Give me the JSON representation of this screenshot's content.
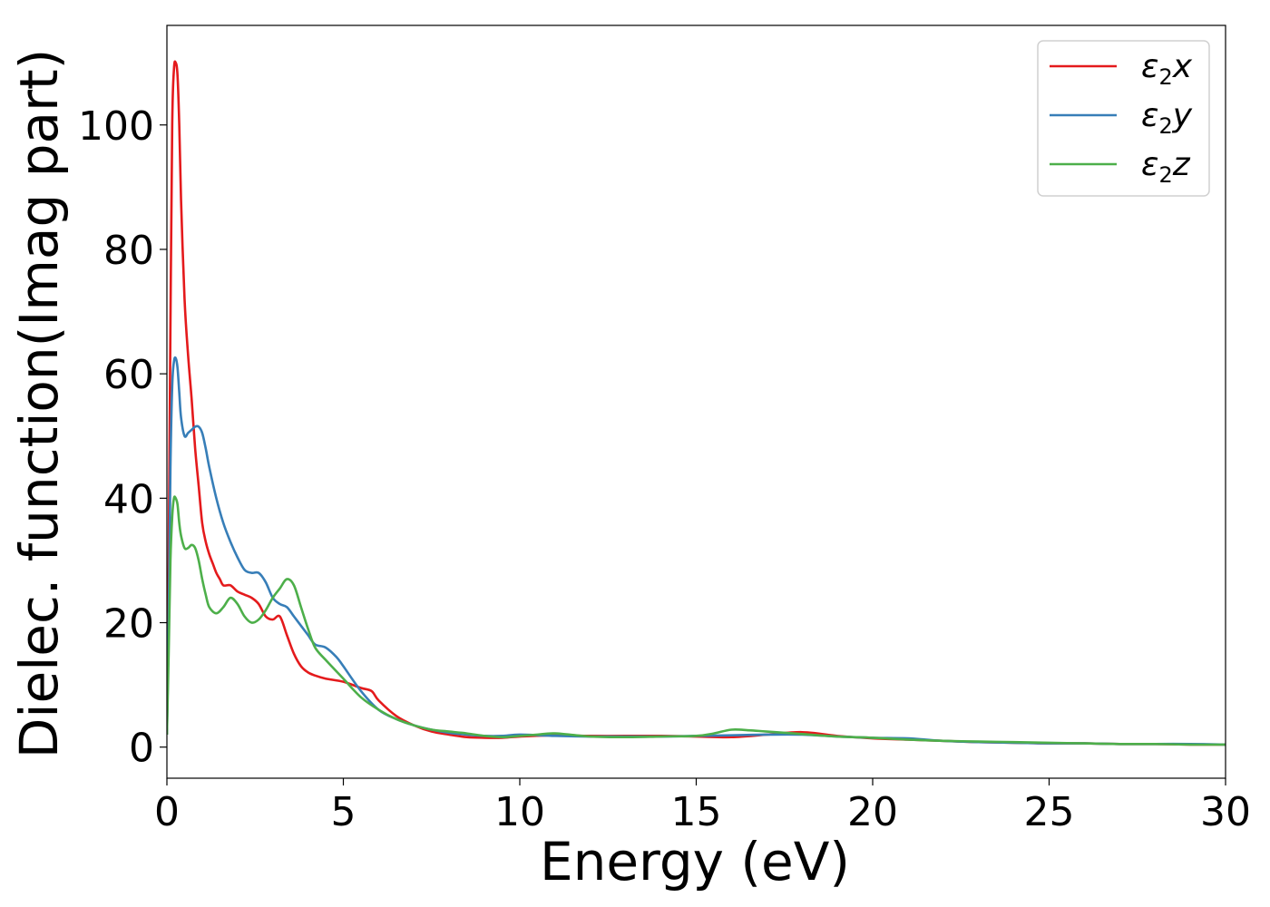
{
  "chart_data": {
    "type": "line",
    "xlabel": "Energy (eV)",
    "ylabel": "Dielec. function(Imag part)",
    "xlim": [
      0,
      30
    ],
    "ylim": [
      -5,
      116
    ],
    "xticks": [
      0,
      5,
      10,
      15,
      20,
      25,
      30
    ],
    "yticks": [
      0,
      20,
      40,
      60,
      80,
      100
    ],
    "grid": false,
    "legend_position": "top-right",
    "series": [
      {
        "name": "ε2x",
        "legend_main": "ε",
        "legend_sub": "2",
        "legend_suffix": "x",
        "color": "#e41a1c",
        "x": [
          0,
          0.05,
          0.1,
          0.15,
          0.2,
          0.25,
          0.3,
          0.35,
          0.4,
          0.5,
          0.6,
          0.7,
          0.8,
          0.9,
          1.0,
          1.1,
          1.2,
          1.3,
          1.4,
          1.5,
          1.6,
          1.8,
          2.0,
          2.2,
          2.4,
          2.6,
          2.8,
          3.0,
          3.2,
          3.4,
          3.6,
          3.8,
          4.0,
          4.2,
          4.5,
          5.0,
          5.5,
          5.8,
          6.0,
          6.5,
          7.0,
          7.5,
          8.0,
          8.5,
          9.0,
          9.5,
          10.0,
          11.0,
          12.0,
          13.0,
          14.0,
          15.0,
          16.0,
          17.0,
          18.0,
          19.0,
          20.0,
          21.0,
          22.0,
          23.0,
          24.0,
          25.0,
          26.0,
          27.0,
          28.0,
          29.0,
          30.0
        ],
        "values": [
          2,
          30,
          68,
          100,
          109,
          110,
          108,
          100,
          88,
          72,
          63,
          56,
          48,
          42,
          36,
          33,
          31,
          29.5,
          28,
          27,
          26,
          26,
          25,
          24.5,
          24,
          23,
          21,
          20.5,
          21,
          18,
          15,
          13,
          12,
          11.5,
          11,
          10.5,
          9.5,
          9,
          7.5,
          5,
          3.5,
          2.5,
          2.0,
          1.6,
          1.5,
          1.5,
          1.7,
          1.9,
          1.8,
          1.8,
          1.8,
          1.7,
          1.6,
          2.0,
          2.4,
          1.8,
          1.4,
          1.2,
          1.0,
          0.8,
          0.7,
          0.6,
          0.6,
          0.5,
          0.5,
          0.4,
          0.4
        ]
      },
      {
        "name": "ε2y",
        "legend_main": "ε",
        "legend_sub": "2",
        "legend_suffix": "y",
        "color": "#377eb8",
        "x": [
          0,
          0.05,
          0.1,
          0.15,
          0.2,
          0.25,
          0.3,
          0.35,
          0.4,
          0.5,
          0.6,
          0.7,
          0.8,
          0.9,
          1.0,
          1.1,
          1.2,
          1.4,
          1.6,
          1.8,
          2.0,
          2.2,
          2.4,
          2.6,
          2.8,
          3.0,
          3.2,
          3.4,
          3.6,
          3.8,
          4.0,
          4.2,
          4.5,
          4.8,
          5.0,
          5.5,
          6.0,
          6.5,
          7.0,
          7.5,
          8.0,
          8.5,
          9.0,
          9.5,
          10.0,
          11.0,
          12.0,
          13.0,
          14.0,
          15.0,
          16.0,
          17.0,
          18.0,
          19.0,
          20.0,
          21.0,
          22.0,
          23.0,
          24.0,
          25.0,
          26.0,
          27.0,
          28.0,
          29.0,
          30.0
        ],
        "values": [
          2,
          20,
          45,
          58,
          62,
          62.5,
          61,
          57,
          53,
          50,
          50.5,
          51,
          51.5,
          51.5,
          50.5,
          48,
          45,
          40,
          36,
          33,
          30.5,
          28.5,
          28,
          28,
          26.5,
          24,
          23,
          22.5,
          21,
          19.5,
          18,
          16.5,
          16,
          14.5,
          13,
          9,
          6,
          4.5,
          3.5,
          2.8,
          2.3,
          2.0,
          1.8,
          1.8,
          2.0,
          1.8,
          1.7,
          1.7,
          1.7,
          1.8,
          1.9,
          2.0,
          2.0,
          1.7,
          1.5,
          1.4,
          1.0,
          0.8,
          0.7,
          0.6,
          0.6,
          0.5,
          0.5,
          0.5,
          0.4
        ]
      },
      {
        "name": "ε2z",
        "legend_main": "ε",
        "legend_sub": "2",
        "legend_suffix": "z",
        "color": "#4daf4a",
        "x": [
          0,
          0.05,
          0.1,
          0.15,
          0.2,
          0.25,
          0.3,
          0.35,
          0.4,
          0.5,
          0.6,
          0.7,
          0.8,
          0.9,
          1.0,
          1.1,
          1.2,
          1.4,
          1.6,
          1.8,
          2.0,
          2.2,
          2.4,
          2.6,
          2.8,
          3.0,
          3.2,
          3.4,
          3.6,
          3.8,
          4.0,
          4.2,
          4.5,
          5.0,
          5.5,
          6.0,
          6.5,
          7.0,
          7.5,
          8.0,
          8.5,
          9.0,
          9.5,
          10.0,
          10.5,
          11.0,
          12.0,
          13.0,
          14.0,
          15.0,
          15.5,
          16.0,
          16.5,
          17.0,
          18.0,
          19.0,
          20.0,
          21.0,
          22.0,
          23.0,
          24.0,
          25.0,
          26.0,
          27.0,
          28.0,
          29.0,
          30.0
        ],
        "values": [
          2,
          15,
          30,
          37,
          40,
          40,
          39,
          36,
          34,
          32,
          32,
          32.5,
          32,
          30,
          27,
          24.5,
          22.5,
          21.5,
          22.5,
          24,
          23,
          21,
          20,
          20.5,
          22,
          24,
          25.5,
          27,
          26,
          22.5,
          19,
          16,
          14,
          11,
          8,
          6,
          4.5,
          3.5,
          2.8,
          2.5,
          2.2,
          1.8,
          1.6,
          1.8,
          2.0,
          2.2,
          1.7,
          1.6,
          1.7,
          1.8,
          2.2,
          2.8,
          2.7,
          2.5,
          2.1,
          1.7,
          1.5,
          1.2,
          1.0,
          0.9,
          0.8,
          0.7,
          0.6,
          0.5,
          0.5,
          0.4,
          0.4
        ]
      }
    ]
  }
}
